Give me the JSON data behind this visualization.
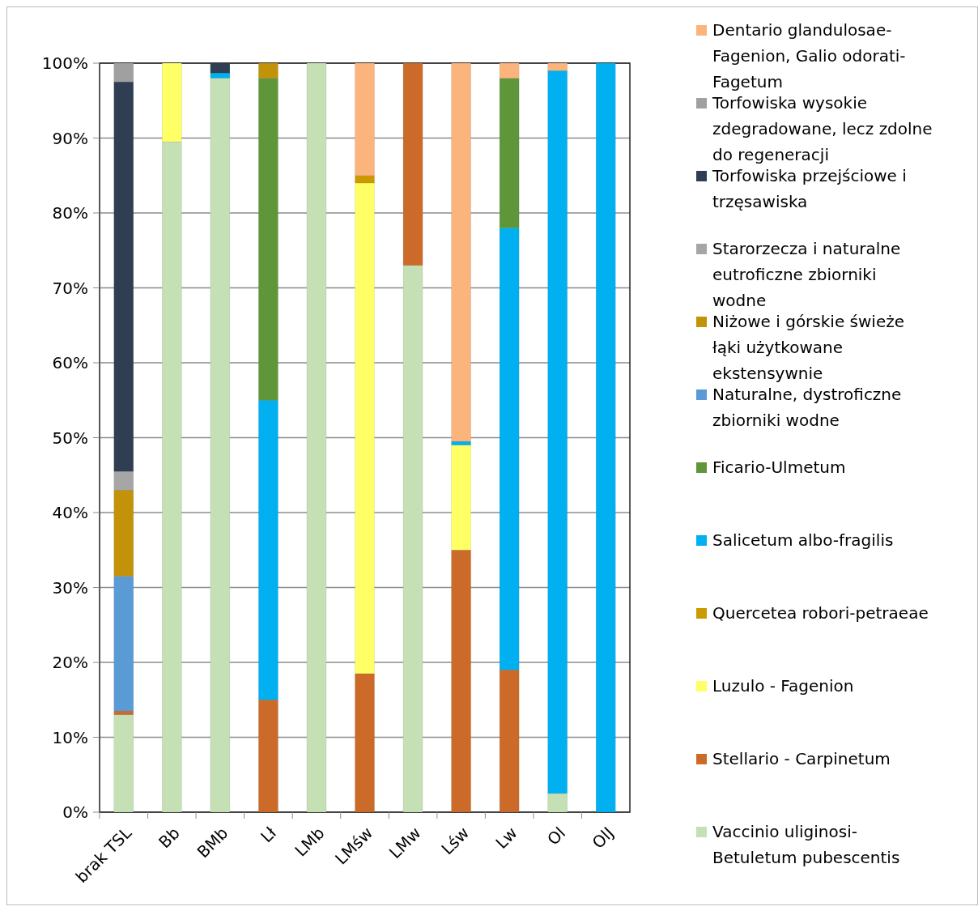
{
  "chart_data": {
    "type": "bar",
    "stacked": true,
    "categories": [
      "brak TSL",
      "Bb",
      "BMb",
      "Lł",
      "LMb",
      "LMśw",
      "LMw",
      "Lśw",
      "Lw",
      "Ol",
      "OlJ"
    ],
    "series": [
      {
        "name": "Vaccinio uliginosi-Betuletum pubescentis",
        "color": "#c4e0b4",
        "values": [
          13,
          89.5,
          98,
          0,
          100,
          0,
          73,
          0,
          0,
          2.5,
          0
        ]
      },
      {
        "name": "Stellario - Carpinetum",
        "color": "#cc6a2a",
        "values": [
          0.5,
          0,
          0,
          15,
          0,
          18.5,
          27,
          35,
          19,
          0,
          0
        ]
      },
      {
        "name": "Luzulo - Fagenion",
        "color": "#ffff66",
        "values": [
          0,
          10.5,
          0,
          0,
          0,
          65.5,
          0,
          14,
          0,
          0,
          0
        ]
      },
      {
        "name": "Quercetea robori-petraeae",
        "color": "#cc9900",
        "values": [
          0,
          0,
          0,
          0,
          0,
          1,
          0,
          0,
          0,
          0,
          0
        ]
      },
      {
        "name": "Salicetum albo-fragilis",
        "color": "#00b0f0",
        "values": [
          0,
          0,
          0.7,
          40,
          0,
          0,
          0,
          0.5,
          59,
          96.5,
          100
        ]
      },
      {
        "name": "Ficario-Ulmetum",
        "color": "#5e9639",
        "values": [
          0,
          0,
          0,
          43,
          0,
          0,
          0,
          0,
          20,
          0,
          0
        ]
      },
      {
        "name": "Naturalne, dystroficzne zbiorniki wodne",
        "color": "#5b9bd5",
        "values": [
          18,
          0,
          0,
          0,
          0,
          0,
          0,
          0,
          0,
          0,
          0
        ]
      },
      {
        "name": "Niżowe i górskie świeże łąki użytkowane ekstensywnie",
        "color": "#c29208",
        "values": [
          11.5,
          0,
          0,
          2,
          0,
          0,
          0,
          0,
          0,
          0,
          0
        ]
      },
      {
        "name": "Starorzecza i naturalne eutroficzne zbiorniki wodne",
        "color": "#a6a6a6",
        "values": [
          2.5,
          0,
          0,
          0,
          0,
          0,
          0,
          0,
          0,
          0,
          0
        ]
      },
      {
        "name": "Torfowiska przejściowe i trzęsawiska",
        "color": "#2f3e52",
        "values": [
          52,
          0,
          1.3,
          0,
          0,
          0,
          0,
          0,
          0,
          0,
          0
        ]
      },
      {
        "name": "Torfowiska wysokie zdegradowane, lecz zdolne do regeneracji",
        "color": "#a0a0a0",
        "values": [
          2.5,
          0,
          0,
          0,
          0,
          0,
          0,
          0,
          0,
          0,
          0
        ]
      },
      {
        "name": "Dentario glandulosae-Fagenion, Galio odorati-Fagetum",
        "color": "#fbb47c",
        "values": [
          0,
          0,
          0,
          0,
          0,
          15,
          0,
          50.5,
          2,
          1,
          0
        ]
      }
    ],
    "ylim": [
      0,
      100
    ],
    "yticks": [
      {
        "value": 0,
        "label": "0%"
      },
      {
        "value": 10,
        "label": "10%"
      },
      {
        "value": 20,
        "label": "20%"
      },
      {
        "value": 30,
        "label": "30%"
      },
      {
        "value": 40,
        "label": "40%"
      },
      {
        "value": 50,
        "label": "50%"
      },
      {
        "value": 60,
        "label": "60%"
      },
      {
        "value": 70,
        "label": "70%"
      },
      {
        "value": 80,
        "label": "80%"
      },
      {
        "value": 90,
        "label": "90%"
      },
      {
        "value": 100,
        "label": "100%"
      }
    ],
    "grid": true,
    "legend": "right"
  }
}
